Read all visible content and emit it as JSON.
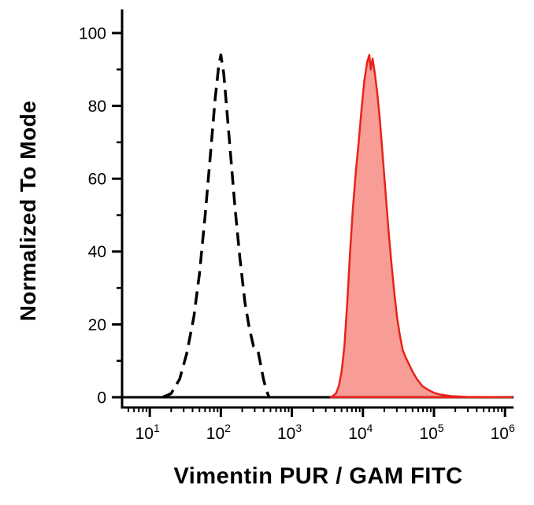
{
  "figure": {
    "background": "#ffffff",
    "axis_color": "#000000",
    "tick_label_color": "#000000"
  },
  "chart_data": {
    "type": "area",
    "title": "",
    "xlabel": "Vimentin PUR / GAM FITC",
    "ylabel": "Normalized To Mode",
    "x_scale": "log10",
    "x_range_log10": [
      0.61,
      6.12
    ],
    "ylim": [
      0,
      100
    ],
    "y_major_ticks": [
      0,
      20,
      40,
      60,
      80,
      100
    ],
    "y_minor_ticks": [
      10,
      30,
      50,
      70,
      90
    ],
    "x_major_tick_base": "10",
    "x_major_tick_exponents": [
      1,
      2,
      3,
      4,
      5,
      6
    ],
    "grid": false,
    "legend": "none",
    "series": [
      {
        "name": "isotype-control",
        "label": "isotype control (dashed)",
        "style": "dashed",
        "color": "#000000",
        "points_log10x_y": [
          [
            1.18,
            0
          ],
          [
            1.3,
            1
          ],
          [
            1.42,
            5
          ],
          [
            1.52,
            12
          ],
          [
            1.62,
            22
          ],
          [
            1.7,
            34
          ],
          [
            1.78,
            50
          ],
          [
            1.86,
            68
          ],
          [
            1.92,
            82
          ],
          [
            1.97,
            91
          ],
          [
            2.0,
            94
          ],
          [
            2.04,
            89
          ],
          [
            2.08,
            80
          ],
          [
            2.14,
            66
          ],
          [
            2.2,
            52
          ],
          [
            2.27,
            38
          ],
          [
            2.34,
            26
          ],
          [
            2.4,
            19
          ],
          [
            2.46,
            14
          ],
          [
            2.52,
            13
          ],
          [
            2.56,
            9
          ],
          [
            2.6,
            5
          ],
          [
            2.64,
            2
          ],
          [
            2.68,
            0
          ]
        ]
      },
      {
        "name": "vimentin-fitc",
        "label": "Vimentin PUR / GAM FITC (red filled)",
        "style": "filled",
        "color": "#e8231b",
        "fill": "#ef3b2c",
        "fill_opacity": 0.5,
        "points_log10x_y": [
          [
            3.55,
            0
          ],
          [
            3.62,
            1
          ],
          [
            3.66,
            3
          ],
          [
            3.7,
            7
          ],
          [
            3.74,
            14
          ],
          [
            3.78,
            26
          ],
          [
            3.82,
            40
          ],
          [
            3.86,
            52
          ],
          [
            3.9,
            62
          ],
          [
            3.94,
            70
          ],
          [
            3.98,
            79
          ],
          [
            4.02,
            87
          ],
          [
            4.06,
            92
          ],
          [
            4.09,
            94
          ],
          [
            4.11,
            90
          ],
          [
            4.135,
            93
          ],
          [
            4.16,
            90
          ],
          [
            4.2,
            84
          ],
          [
            4.24,
            76
          ],
          [
            4.28,
            66
          ],
          [
            4.32,
            56
          ],
          [
            4.36,
            46
          ],
          [
            4.4,
            37
          ],
          [
            4.44,
            29
          ],
          [
            4.48,
            22
          ],
          [
            4.52,
            17
          ],
          [
            4.56,
            13
          ],
          [
            4.6,
            11
          ],
          [
            4.65,
            9
          ],
          [
            4.7,
            7
          ],
          [
            4.76,
            5
          ],
          [
            4.84,
            3
          ],
          [
            4.92,
            2
          ],
          [
            5.0,
            1.2
          ],
          [
            5.1,
            0.7
          ],
          [
            5.25,
            0.3
          ],
          [
            5.45,
            0.1
          ],
          [
            6.1,
            0
          ]
        ]
      }
    ]
  }
}
